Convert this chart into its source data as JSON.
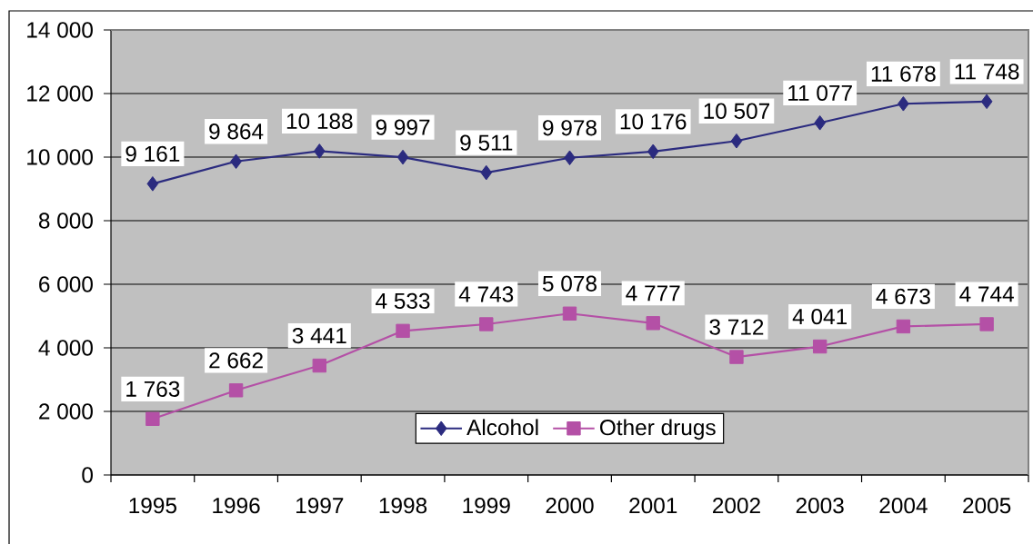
{
  "chart_data": {
    "type": "line",
    "categories": [
      "1995",
      "1996",
      "1997",
      "1998",
      "1999",
      "2000",
      "2001",
      "2002",
      "2003",
      "2004",
      "2005"
    ],
    "series": [
      {
        "name": "Alcohol",
        "color": "#2b2b7f",
        "marker": "diamond",
        "values": [
          9161,
          9864,
          10188,
          9997,
          9511,
          9978,
          10176,
          10507,
          11077,
          11678,
          11748
        ],
        "value_labels": [
          "9 161",
          "9 864",
          "10 188",
          "9 997",
          "9 511",
          "9 978",
          "10 176",
          "10 507",
          "11 077",
          "11 678",
          "11 748"
        ]
      },
      {
        "name": "Other drugs",
        "color": "#b450a6",
        "marker": "square",
        "values": [
          1763,
          2662,
          3441,
          4533,
          4743,
          5078,
          4777,
          3712,
          4041,
          4673,
          4744
        ],
        "value_labels": [
          "1 763",
          "2 662",
          "3 441",
          "4 533",
          "4 743",
          "5 078",
          "4 777",
          "3 712",
          "4 041",
          "4 673",
          "4 744"
        ]
      }
    ],
    "ylim": [
      0,
      14000
    ],
    "yticks": [
      0,
      {
        "value": 2000,
        "label": "2 000"
      },
      {
        "value": 4000,
        "label": "4 000"
      },
      {
        "value": 6000,
        "label": "6 000"
      },
      {
        "value": 8000,
        "label": "8 000"
      },
      {
        "value": 10000,
        "label": "10 000"
      },
      {
        "value": 12000,
        "label": "12 000"
      },
      {
        "value": 14000,
        "label": "14 000"
      }
    ],
    "grid": "y",
    "legend": "bottom",
    "line_style": "solid"
  }
}
